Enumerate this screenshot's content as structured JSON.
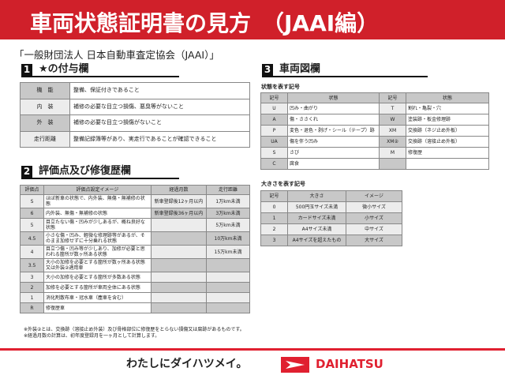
{
  "header": {
    "title": "車両状態証明書の見方　（JAAI編）"
  },
  "org": "「一般財団法人 日本自動車査定協会（JAAI）」",
  "section1": {
    "num": "1",
    "title": "★の付与欄",
    "rows": [
      {
        "k": "機　能",
        "v": "整備、保証付きであること"
      },
      {
        "k": "内　装",
        "v": "補修の必要な目立つ損傷、悪臭等がないこと"
      },
      {
        "k": "外　装",
        "v": "補修の必要な目立つ損傷がないこと"
      },
      {
        "k": "走行距離",
        "v": "整備記録簿等があり、実走行であることが確認できること"
      }
    ]
  },
  "section2": {
    "num": "2",
    "title": "評価点及び修復歴欄",
    "headers": [
      "評価点",
      "評価点設定イメージ",
      "経過月数",
      "走行距離"
    ],
    "rows": [
      [
        "S",
        "ほぼ新車の状態で、内外装、無傷・無補修の状態",
        "新車登録後12ヶ月以内",
        "1万km未満"
      ],
      [
        "6",
        "内外装、無傷・無補修の状態",
        "新車登録後36ヶ月以内",
        "3万km未満"
      ],
      [
        "5",
        "目立たない傷・凹みが少しあるが、概ね良好な状態",
        "",
        "5万km未満"
      ],
      [
        "4.5",
        "小さな傷・凹み、軽微な修理跡等があるが、そのまま加修せずに十分乗れる状態",
        "",
        "10万km未満"
      ],
      [
        "4",
        "目立つ傷・凹み等が少しあり、加修が必要と思われる箇所が数ヶ所ある状態",
        "",
        "15万km未満"
      ],
      [
        "3.5",
        "大小の加修を必要とする箇所が数ヶ所ある状態又は外装②適用車",
        "",
        ""
      ],
      [
        "3",
        "大小の加修を必要とする箇所が多数ある状態",
        "",
        ""
      ],
      [
        "2",
        "加修を必要とする箇所が車両全体にある状態",
        "",
        ""
      ],
      [
        "1",
        "消化剤散布車・冠水車（塵車を含む）",
        "",
        ""
      ],
      [
        "R",
        "修復歴車",
        "",
        ""
      ]
    ]
  },
  "notes": [
    "※外装②とは、交換跡（溶接止め外装）及び骨格部位に修復歴をとらない損傷又は腐跡があるものです。",
    "※経過月数の計算は、初年度登録月を一ヶ月として計算します。"
  ],
  "section3": {
    "num": "3",
    "title": "車両図欄",
    "state_title": "状態を表す記号",
    "state_headers": [
      "記号",
      "状態",
      "記号",
      "状態"
    ],
    "state_rows": [
      [
        "U",
        "凹み・曲がり",
        "T",
        "割れ・亀裂・穴"
      ],
      [
        "A",
        "傷・ささくれ",
        "W",
        "塗装跡・板金修理跡"
      ],
      [
        "P",
        "変色・退色・剥げ・シール（テープ）跡",
        "XM",
        "交換跡（ネジ止め外板）"
      ],
      [
        "UA",
        "傷を伴う凹み",
        "XM②",
        "交換跡（溶接止め外板）"
      ],
      [
        "S",
        "さび",
        "M",
        "修復歴"
      ],
      [
        "C",
        "腐食",
        "",
        ""
      ]
    ],
    "size_title": "大きさを表す記号",
    "size_headers": [
      "記号",
      "大きさ",
      "イメージ"
    ],
    "size_rows": [
      [
        "0",
        "500円玉サイズ未満",
        "微小サイズ"
      ],
      [
        "1",
        "カードサイズ未満",
        "小サイズ"
      ],
      [
        "2",
        "A4サイズ未満",
        "中サイズ"
      ],
      [
        "3",
        "A4サイズを超えたもの",
        "大サイズ"
      ]
    ]
  },
  "footer": {
    "slogan": "わたしにダイハツメイ。",
    "brand": "DAIHATSU"
  },
  "colors": {
    "header": "#d0202a",
    "brand": "#e02030"
  }
}
